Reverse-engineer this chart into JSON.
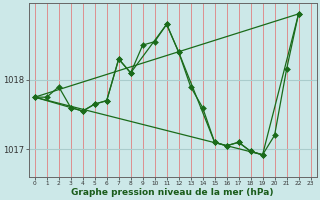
{
  "xlabel": "Graphe pression niveau de la mer (hPa)",
  "background_color": "#cce8e8",
  "plot_bg_color": "#cce8e8",
  "vgrid_color": "#e08080",
  "hgrid_color": "#aacccc",
  "line_color": "#1a6b1a",
  "marker_color": "#1a6b1a",
  "ylim": [
    1016.6,
    1019.1
  ],
  "xlim": [
    -0.5,
    23.5
  ],
  "yticks": [
    1017,
    1018
  ],
  "xticks": [
    0,
    1,
    2,
    3,
    4,
    5,
    6,
    7,
    8,
    9,
    10,
    11,
    12,
    13,
    14,
    15,
    16,
    17,
    18,
    19,
    20,
    21,
    22,
    23
  ],
  "series1_x": [
    0,
    1,
    2,
    3,
    4,
    5,
    6,
    7,
    8,
    9,
    10,
    11,
    12,
    13,
    14,
    15,
    16,
    17,
    18,
    19,
    20,
    21,
    22
  ],
  "series1_y": [
    1017.75,
    1017.75,
    1017.9,
    1017.6,
    1017.55,
    1017.65,
    1017.7,
    1018.3,
    1018.1,
    1018.5,
    1018.55,
    1018.8,
    1018.4,
    1017.9,
    1017.6,
    1017.1,
    1017.05,
    1017.1,
    1016.97,
    1016.92,
    1017.2,
    1018.15,
    1018.95
  ],
  "series2_x": [
    0,
    3,
    4,
    5,
    6,
    7,
    8,
    11,
    12,
    15,
    16,
    17,
    18,
    19,
    22
  ],
  "series2_y": [
    1017.75,
    1017.6,
    1017.55,
    1017.65,
    1017.7,
    1018.3,
    1018.1,
    1018.8,
    1018.4,
    1017.1,
    1017.05,
    1017.1,
    1016.97,
    1016.92,
    1018.95
  ],
  "series3_x": [
    0,
    22
  ],
  "series3_y": [
    1017.75,
    1018.95
  ],
  "series4_x": [
    0,
    19
  ],
  "series4_y": [
    1017.75,
    1016.92
  ]
}
